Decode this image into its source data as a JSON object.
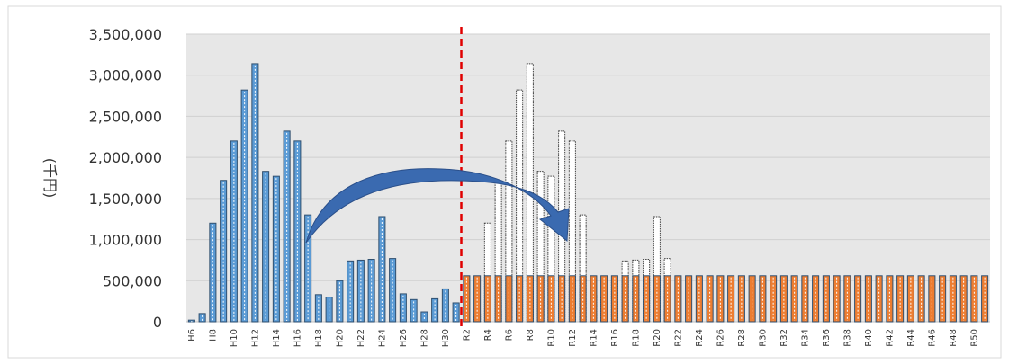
{
  "chart_data": {
    "type": "bar",
    "y_axis_label": "(千円)",
    "categories": [
      "H6",
      null,
      "H8",
      null,
      "H10",
      null,
      "H12",
      null,
      "H14",
      null,
      "H16",
      null,
      "H18",
      null,
      "H20",
      null,
      "H22",
      null,
      "H24",
      null,
      "H26",
      null,
      "H28",
      null,
      "H30",
      null,
      "R2",
      null,
      "R4",
      null,
      "R6",
      null,
      "R8",
      null,
      "R10",
      null,
      "R12",
      null,
      "R14",
      null,
      "R16",
      null,
      "R18",
      null,
      "R20",
      null,
      "R22",
      null,
      "R24",
      null,
      "R26",
      null,
      "R28",
      null,
      "R30",
      null,
      "R32",
      null,
      "R34",
      null,
      "R36",
      null,
      "R38",
      null,
      "R40",
      null,
      "R42",
      null,
      "R44",
      null,
      "R46",
      null,
      "R48",
      null,
      "R50",
      null
    ],
    "series": [
      {
        "color": "#5b9bd5",
        "dashed": false,
        "values": [
          20000,
          100000,
          1200000,
          1720000,
          2200000,
          2820000,
          3140000,
          1830000,
          1770000,
          2320000,
          2200000,
          1300000,
          330000,
          300000,
          500000,
          740000,
          750000,
          760000,
          1280000,
          770000,
          340000,
          270000,
          120000,
          280000,
          400000,
          230000,
          null,
          null,
          null,
          null,
          null,
          null,
          null,
          null,
          null,
          null,
          null,
          null,
          null,
          null,
          null,
          null,
          null,
          null,
          null,
          null,
          null,
          null,
          null,
          null,
          null,
          null,
          null,
          null,
          null,
          null,
          null,
          null,
          null,
          null,
          null,
          null,
          null,
          null,
          null,
          null,
          null,
          null,
          null,
          null,
          null,
          null,
          null,
          null,
          null,
          null
        ]
      },
      {
        "color": "#ffffff",
        "dashed": true,
        "values": [
          null,
          null,
          null,
          null,
          null,
          null,
          null,
          null,
          null,
          null,
          null,
          null,
          null,
          null,
          null,
          null,
          null,
          null,
          null,
          null,
          null,
          null,
          null,
          null,
          null,
          null,
          20000,
          100000,
          1200000,
          1720000,
          2200000,
          2820000,
          3140000,
          1830000,
          1770000,
          2320000,
          2200000,
          1300000,
          330000,
          300000,
          500000,
          740000,
          750000,
          760000,
          1280000,
          770000,
          null,
          null,
          null,
          null,
          null,
          null,
          null,
          null,
          null,
          null,
          null,
          null,
          null,
          null,
          null,
          null,
          null,
          null,
          null,
          null,
          null,
          null,
          null,
          null,
          null,
          null,
          null,
          null,
          null,
          null
        ]
      },
      {
        "color": "#ed7d31",
        "dashed": false,
        "values": [
          null,
          null,
          null,
          null,
          null,
          null,
          null,
          null,
          null,
          null,
          null,
          null,
          null,
          null,
          null,
          null,
          null,
          null,
          null,
          null,
          null,
          null,
          null,
          null,
          null,
          null,
          560000,
          560000,
          560000,
          560000,
          560000,
          560000,
          560000,
          560000,
          560000,
          560000,
          560000,
          560000,
          560000,
          560000,
          560000,
          560000,
          560000,
          560000,
          560000,
          560000,
          560000,
          560000,
          560000,
          560000,
          560000,
          560000,
          560000,
          560000,
          560000,
          560000,
          560000,
          560000,
          560000,
          560000,
          560000,
          560000,
          560000,
          560000,
          560000,
          560000,
          560000,
          560000,
          560000,
          560000,
          560000,
          560000,
          560000,
          560000,
          560000,
          560000
        ]
      }
    ],
    "ylim": [
      0,
      3500000
    ],
    "yticks": [
      0,
      {
        "value": 500000,
        "label": "500,000"
      },
      {
        "value": 1000000,
        "label": "1,000,000"
      },
      {
        "value": 1500000,
        "label": "1,500,000"
      },
      {
        "value": 2000000,
        "label": "2,000,000"
      },
      {
        "value": 2500000,
        "label": "2,500,000"
      },
      {
        "value": 3000000,
        "label": "3,000,000"
      },
      {
        "value": 3500000,
        "label": "3,500,000"
      }
    ],
    "grid": true
  }
}
